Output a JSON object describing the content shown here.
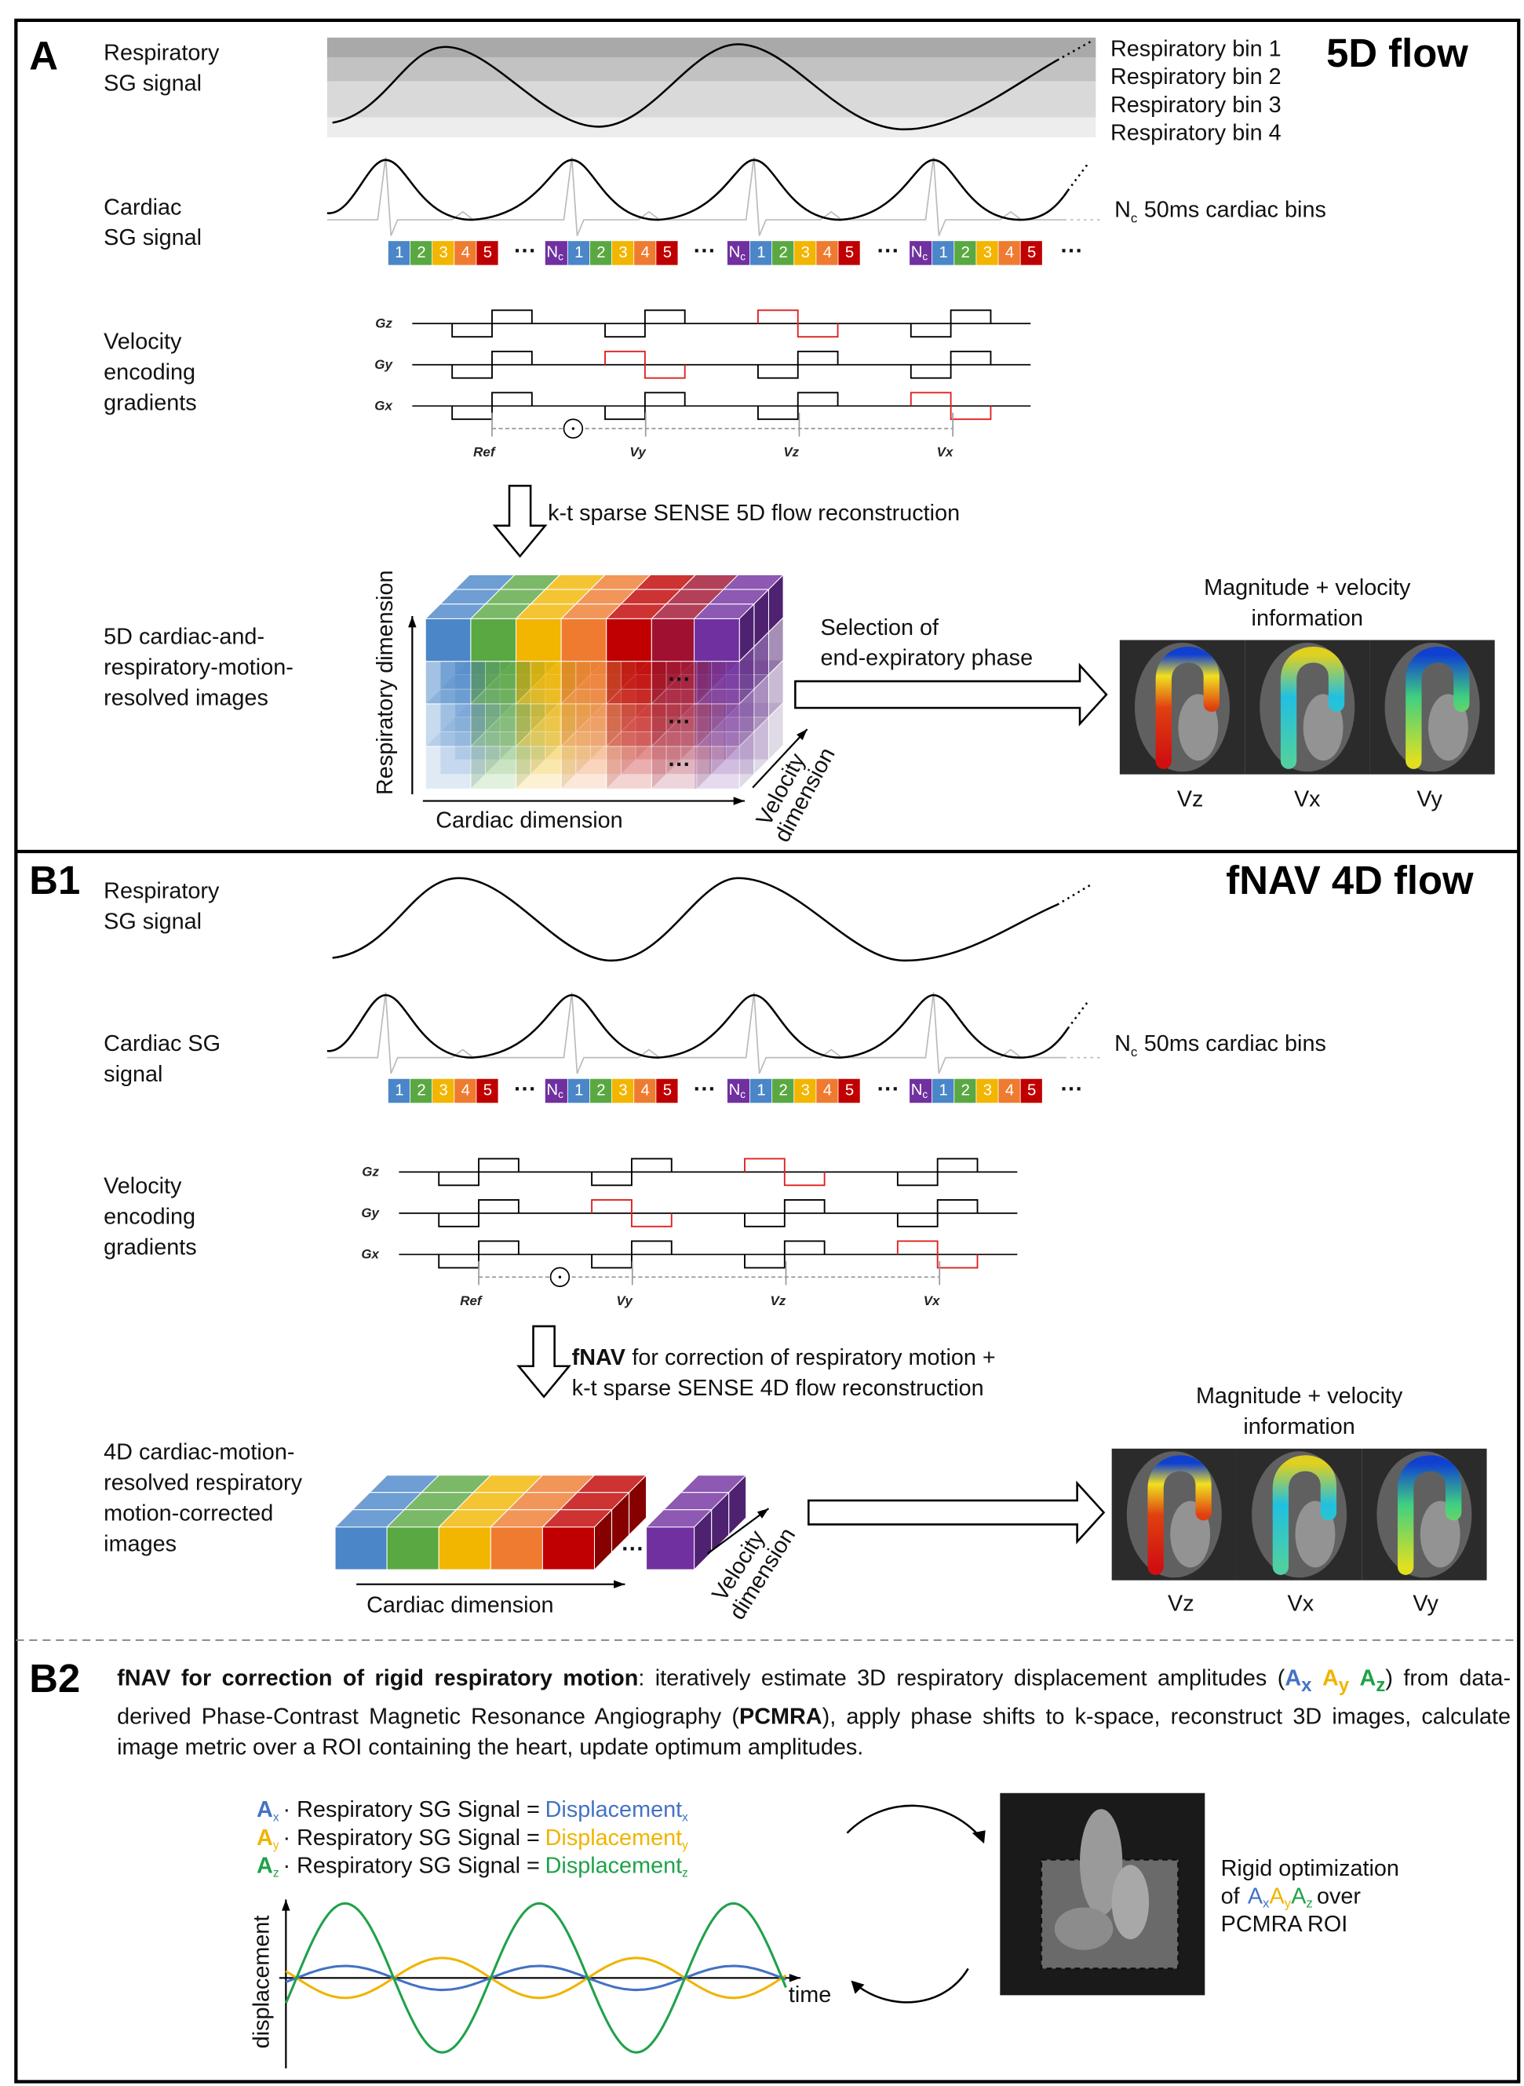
{
  "panel_a": {
    "label": "A",
    "title": "5D flow",
    "resp_label": [
      "Respiratory",
      "SG signal"
    ],
    "resp_bins": [
      "Respiratory bin 1",
      "Respiratory bin 2",
      "Respiratory bin 3",
      "Respiratory bin 4"
    ],
    "cardiac_label": [
      "Cardiac",
      "SG signal"
    ],
    "cardiac_bins_note": {
      "n": "N",
      "sub": "c",
      "text": "50ms cardiac bins"
    },
    "bin_numbers": [
      "1",
      "2",
      "3",
      "4",
      "5"
    ],
    "nc": {
      "n": "N",
      "sub": "c"
    },
    "ellipsis": "···",
    "venc_label": [
      "Velocity",
      "encoding",
      "gradients"
    ],
    "gradient_axes": [
      "Gz",
      "Gy",
      "Gx"
    ],
    "encodings": [
      "Ref",
      "Vy",
      "Vz",
      "Vx"
    ],
    "recon": "k-t sparse SENSE 5D flow reconstruction",
    "images_label": [
      "5D cardiac-and-",
      "respiratory-motion-",
      "resolved images"
    ],
    "resp_dim": "Respiratory dimension",
    "cardiac_dim": "Cardiac dimension",
    "vel_dim": [
      "Velocity",
      "dimension"
    ],
    "selection": [
      "Selection of",
      "end-expiratory phase"
    ],
    "output_title": [
      "Magnitude + velocity",
      "information"
    ],
    "output_labels": [
      "Vz",
      "Vx",
      "Vy"
    ]
  },
  "panel_b1": {
    "label": "B1",
    "title": "fNAV 4D flow",
    "resp_label": [
      "Respiratory",
      "SG signal"
    ],
    "cardiac_label": [
      "Cardiac SG",
      "signal"
    ],
    "cardiac_bins_note": {
      "n": "N",
      "sub": "c",
      "text": "50ms cardiac bins"
    },
    "bin_numbers": [
      "1",
      "2",
      "3",
      "4",
      "5"
    ],
    "nc": {
      "n": "N",
      "sub": "c"
    },
    "ellipsis": "···",
    "venc_label": [
      "Velocity",
      "encoding",
      "gradients"
    ],
    "gradient_axes": [
      "Gz",
      "Gy",
      "Gx"
    ],
    "encodings": [
      "Ref",
      "Vy",
      "Vz",
      "Vx"
    ],
    "recon_bold": "fNAV",
    "recon_line1": "for correction of respiratory motion +",
    "recon_line2": "k-t sparse SENSE 4D flow reconstruction",
    "images_label": [
      "4D cardiac-motion-",
      "resolved respiratory",
      "motion-corrected",
      "images"
    ],
    "cardiac_dim": "Cardiac dimension",
    "vel_dim": [
      "Velocity",
      "dimension"
    ],
    "output_title": [
      "Magnitude + velocity",
      "information"
    ],
    "output_labels": [
      "Vz",
      "Vx",
      "Vy"
    ]
  },
  "panel_b2": {
    "label": "B2",
    "paragraph": {
      "bold1": "fNAV for correction of rigid respiratory motion",
      "text1": ": iteratively estimate 3D respiratory displacement amplitudes (",
      "text2": ") from data-derived Phase-Contrast Magnetic Resonance Angiography (",
      "bold2": "PCMRA",
      "text3": "), apply phase shifts to k-space, reconstruct 3D images, calculate image metric over a ROI containing the heart, update optimum amplitudes."
    },
    "amplitudes": [
      {
        "letter": "A",
        "sub": "x"
      },
      {
        "letter": "A",
        "sub": "y"
      },
      {
        "letter": "A",
        "sub": "z"
      }
    ],
    "equation_text": "· Respiratory SG Signal =",
    "displacement": "Displacement",
    "y_axis": "displacement",
    "x_axis": "time",
    "rigid_line1": "Rigid optimization",
    "rigid_of": "of",
    "rigid_over": "over",
    "rigid_line3": "PCMRA ROI"
  }
}
